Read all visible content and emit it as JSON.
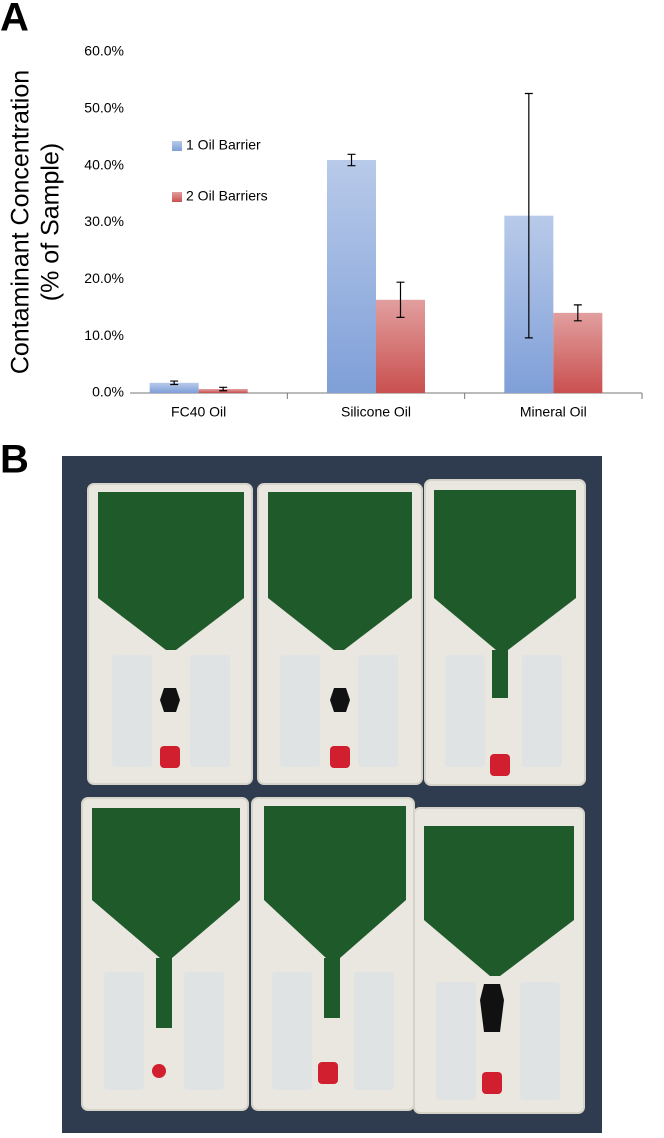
{
  "panels": {
    "a": "A",
    "b": "B"
  },
  "chart_data": {
    "type": "bar",
    "y_label": [
      "Contaminant Concentration",
      "(% of Sample)"
    ],
    "categories": [
      "FC40 Oil",
      "Silicone Oil",
      "Mineral Oil"
    ],
    "series": [
      {
        "name": "1 Oil Barrier",
        "color": "#7f9fd8",
        "values": [
          1.8,
          41.0,
          31.2
        ],
        "errors": [
          0.3,
          1.0,
          21.5
        ]
      },
      {
        "name": "2 Oil Barriers",
        "color": "#c9504f",
        "values": [
          0.7,
          16.4,
          14.1
        ],
        "errors": [
          0.3,
          3.1,
          1.4
        ]
      }
    ],
    "ylim": [
      0,
      60
    ],
    "yticks": [
      {
        "value": 0,
        "label": "0.0%"
      },
      {
        "value": 10,
        "label": "10.0%"
      },
      {
        "value": 20,
        "label": "20.0%"
      },
      {
        "value": 30,
        "label": "30.0%"
      },
      {
        "value": 40,
        "label": "40.0%"
      },
      {
        "value": 50,
        "label": "50.0%"
      },
      {
        "value": 60,
        "label": "60.0%"
      }
    ],
    "legend": "upper-left"
  }
}
